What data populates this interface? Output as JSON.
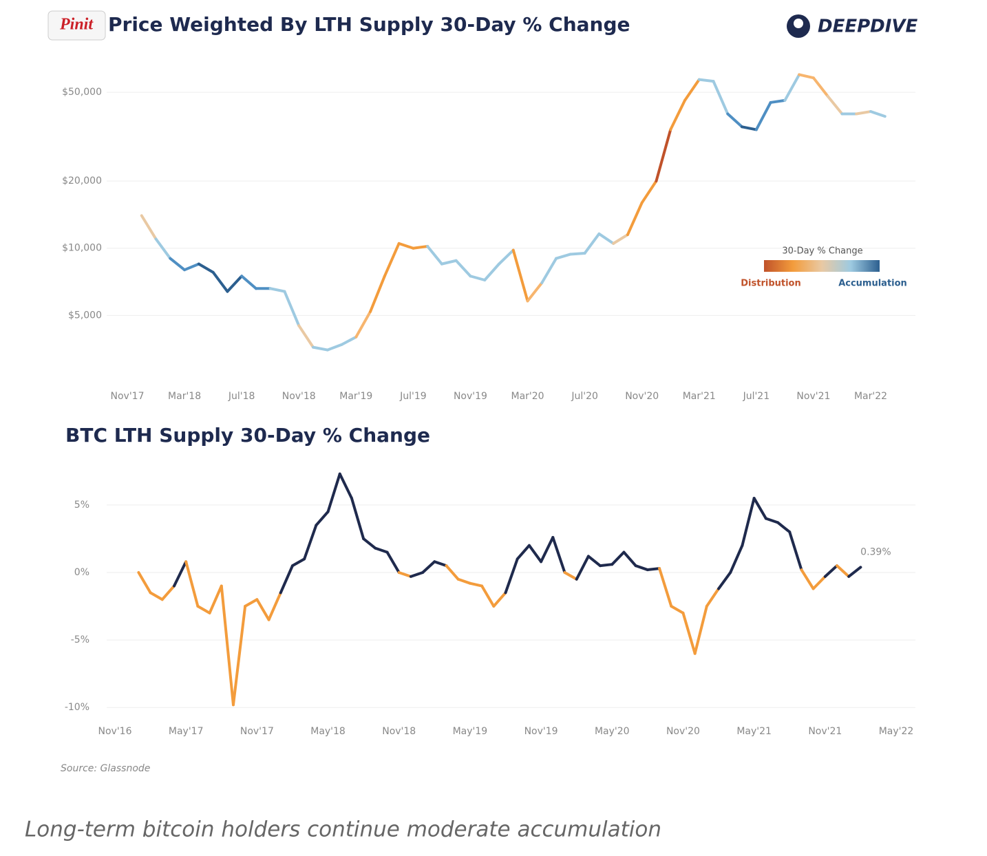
{
  "pin_button": "Pinit",
  "logo": "DEEPDIVE",
  "source": "Source: Glassnode",
  "caption": "Long-term bitcoin holders continue moderate accumulation",
  "chart_data": [
    {
      "type": "line",
      "title": "Price Weighted By LTH Supply 30-Day % Change",
      "log_scale": true,
      "grid": true,
      "ylim": [
        2800,
        66000
      ],
      "yticks": [
        {
          "value": 50000,
          "label": "$50,000"
        },
        {
          "value": 20000,
          "label": "$20,000"
        },
        {
          "value": 10000,
          "label": "$10,000"
        },
        {
          "value": 5000,
          "label": "$5,000"
        }
      ],
      "xlim": [
        "2017-11",
        "2022-03"
      ],
      "xticks": [
        {
          "value": "2017-11",
          "label": "Nov'17"
        },
        {
          "value": "2018-03",
          "label": "Mar'18"
        },
        {
          "value": "2018-07",
          "label": "Jul'18"
        },
        {
          "value": "2018-11",
          "label": "Nov'18"
        },
        {
          "value": "2019-03",
          "label": "Mar'19"
        },
        {
          "value": "2019-07",
          "label": "Jul'19"
        },
        {
          "value": "2019-11",
          "label": "Nov'19"
        },
        {
          "value": "2020-03",
          "label": "Mar'20"
        },
        {
          "value": "2020-07",
          "label": "Jul'20"
        },
        {
          "value": "2020-11",
          "label": "Nov'20"
        },
        {
          "value": "2021-03",
          "label": "Mar'21"
        },
        {
          "value": "2021-07",
          "label": "Jul'21"
        },
        {
          "value": "2021-11",
          "label": "Nov'21"
        },
        {
          "value": "2022-03",
          "label": "Mar'22"
        }
      ],
      "x": [
        "2017-12",
        "2018-01",
        "2018-02",
        "2018-03",
        "2018-04",
        "2018-05",
        "2018-06",
        "2018-07",
        "2018-08",
        "2018-09",
        "2018-10",
        "2018-11",
        "2018-12",
        "2019-01",
        "2019-02",
        "2019-03",
        "2019-04",
        "2019-05",
        "2019-06",
        "2019-07",
        "2019-08",
        "2019-09",
        "2019-10",
        "2019-11",
        "2019-12",
        "2020-01",
        "2020-02",
        "2020-03",
        "2020-04",
        "2020-05",
        "2020-06",
        "2020-07",
        "2020-08",
        "2020-09",
        "2020-10",
        "2020-11",
        "2020-12",
        "2021-01",
        "2021-02",
        "2021-03",
        "2021-04",
        "2021-05",
        "2021-06",
        "2021-07",
        "2021-08",
        "2021-09",
        "2021-10",
        "2021-11",
        "2021-12",
        "2022-01",
        "2022-02",
        "2022-03",
        "2022-04"
      ],
      "series": [
        {
          "values": [
            14000,
            11000,
            9000,
            8000,
            8500,
            7800,
            6400,
            7500,
            6600,
            6600,
            6400,
            4500,
            3600,
            3500,
            3700,
            4000,
            5200,
            7500,
            10500,
            10000,
            10200,
            8500,
            8800,
            7500,
            7200,
            8500,
            9800,
            5800,
            7000,
            9000,
            9400,
            9500,
            11600,
            10500,
            11500,
            16000,
            20000,
            34000,
            46000,
            57000,
            56000,
            40000,
            35000,
            34000,
            45000,
            46000,
            60000,
            58000,
            48000,
            40000,
            40000,
            41000,
            39000
          ],
          "colors": [
            "#f39c3c",
            "#e9c9a3",
            "#9ecae1",
            "#4f8fc3",
            "#4f8fc3",
            "#2c5f8f",
            "#2c5f8f",
            "#2c5f8f",
            "#4f8fc3",
            "#4f8fc3",
            "#9ecae1",
            "#9ecae1",
            "#e9c9a3",
            "#9ecae1",
            "#9ecae1",
            "#9ecae1",
            "#f7b56e",
            "#f39c3c",
            "#f39c3c",
            "#f39c3c",
            "#f39c3c",
            "#9ecae1",
            "#9ecae1",
            "#9ecae1",
            "#9ecae1",
            "#9ecae1",
            "#9ecae1",
            "#f39c3c",
            "#f7b56e",
            "#9ecae1",
            "#9ecae1",
            "#9ecae1",
            "#9ecae1",
            "#9ecae1",
            "#e9c9a3",
            "#f39c3c",
            "#f39c3c",
            "#c0522a",
            "#f39c3c",
            "#f39c3c",
            "#9ecae1",
            "#9ecae1",
            "#4f8fc3",
            "#2c5f8f",
            "#4f8fc3",
            "#4f8fc3",
            "#9ecae1",
            "#f7b56e",
            "#f7b56e",
            "#e9c9a3",
            "#9ecae1",
            "#e9c9a3",
            "#9ecae1"
          ]
        }
      ],
      "legend": {
        "title": "30-Day % Change",
        "low_label": "Distribution",
        "high_label": "Accumulation",
        "colors": [
          "#c0522a",
          "#f39c3c",
          "#e9c9a3",
          "#9ecae1",
          "#2c5f8f"
        ]
      }
    },
    {
      "type": "line",
      "title": "BTC LTH Supply 30-Day % Change",
      "grid": true,
      "ylim": [
        -10.5,
        8
      ],
      "yticks": [
        {
          "value": 5,
          "label": "5%"
        },
        {
          "value": 0,
          "label": "0%"
        },
        {
          "value": -5,
          "label": "-5%"
        },
        {
          "value": -10,
          "label": "-10%"
        }
      ],
      "xlim": [
        "2016-11",
        "2022-05"
      ],
      "xticks": [
        {
          "value": "2016-11",
          "label": "Nov'16"
        },
        {
          "value": "2017-05",
          "label": "May'17"
        },
        {
          "value": "2017-11",
          "label": "Nov'17"
        },
        {
          "value": "2018-05",
          "label": "May'18"
        },
        {
          "value": "2018-11",
          "label": "Nov'18"
        },
        {
          "value": "2019-05",
          "label": "May'19"
        },
        {
          "value": "2019-11",
          "label": "Nov'19"
        },
        {
          "value": "2020-05",
          "label": "May'20"
        },
        {
          "value": "2020-11",
          "label": "Nov'20"
        },
        {
          "value": "2021-05",
          "label": "May'21"
        },
        {
          "value": "2021-11",
          "label": "Nov'21"
        },
        {
          "value": "2022-05",
          "label": "May'22"
        }
      ],
      "positive_color": "#1f2a4d",
      "negative_color": "#f39c3c",
      "x": [
        "2017-01",
        "2017-02",
        "2017-03",
        "2017-04",
        "2017-05",
        "2017-06",
        "2017-07",
        "2017-08",
        "2017-09",
        "2017-10",
        "2017-11",
        "2017-12",
        "2018-01",
        "2018-02",
        "2018-03",
        "2018-04",
        "2018-05",
        "2018-06",
        "2018-07",
        "2018-08",
        "2018-09",
        "2018-10",
        "2018-11",
        "2018-12",
        "2019-01",
        "2019-02",
        "2019-03",
        "2019-04",
        "2019-05",
        "2019-06",
        "2019-07",
        "2019-08",
        "2019-09",
        "2019-10",
        "2019-11",
        "2019-12",
        "2020-01",
        "2020-02",
        "2020-03",
        "2020-04",
        "2020-05",
        "2020-06",
        "2020-07",
        "2020-08",
        "2020-09",
        "2020-10",
        "2020-11",
        "2020-12",
        "2021-01",
        "2021-02",
        "2021-03",
        "2021-04",
        "2021-05",
        "2021-06",
        "2021-07",
        "2021-08",
        "2021-09",
        "2021-10",
        "2021-11",
        "2021-12",
        "2022-01",
        "2022-02"
      ],
      "series": [
        {
          "values": [
            0,
            -1.5,
            -2,
            -1,
            0.8,
            -2.5,
            -3,
            -1,
            -9.8,
            -2.5,
            -2,
            -3.5,
            -1.5,
            0.5,
            1,
            3.5,
            4.5,
            7.3,
            5.5,
            2.5,
            1.8,
            1.5,
            0,
            -0.3,
            0,
            0.8,
            0.5,
            -0.5,
            -0.8,
            -1,
            -2.5,
            -1.5,
            1,
            2,
            0.8,
            2.6,
            0,
            -0.5,
            1.2,
            0.5,
            0.6,
            1.5,
            0.5,
            0.2,
            0.3,
            -2.5,
            -3,
            -6,
            -2.5,
            -1.2,
            0,
            2,
            5.5,
            4,
            3.7,
            3,
            0.2,
            -1.2,
            -0.3,
            0.5,
            -0.3,
            0.39
          ],
          "value_labels": [
            null,
            null,
            null,
            null,
            null,
            null,
            null,
            null,
            null,
            null,
            null,
            null,
            null,
            null,
            null,
            null,
            null,
            null,
            null,
            null,
            null,
            null,
            null,
            null,
            null,
            null,
            null,
            null,
            null,
            null,
            null,
            null,
            null,
            null,
            null,
            null,
            null,
            null,
            null,
            null,
            null,
            null,
            null,
            null,
            null,
            null,
            null,
            null,
            null,
            null,
            null,
            null,
            null,
            null,
            null,
            null,
            null,
            null,
            null,
            null,
            null,
            "0.39%"
          ]
        }
      ]
    }
  ]
}
